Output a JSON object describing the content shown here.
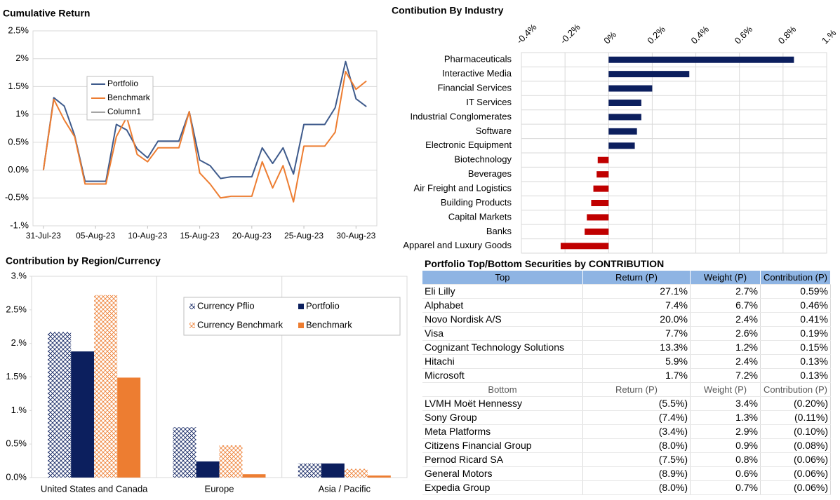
{
  "chart_data": [
    {
      "type": "line",
      "title": "Cumulative Return",
      "x": [
        "2023-07-31",
        "2023-08-01",
        "2023-08-02",
        "2023-08-03",
        "2023-08-04",
        "2023-08-05",
        "2023-08-06",
        "2023-08-07",
        "2023-08-08",
        "2023-08-09",
        "2023-08-10",
        "2023-08-11",
        "2023-08-12",
        "2023-08-13",
        "2023-08-14",
        "2023-08-15",
        "2023-08-16",
        "2023-08-17",
        "2023-08-18",
        "2023-08-19",
        "2023-08-20",
        "2023-08-21",
        "2023-08-22",
        "2023-08-23",
        "2023-08-24",
        "2023-08-25",
        "2023-08-26",
        "2023-08-27",
        "2023-08-28",
        "2023-08-29",
        "2023-08-30",
        "2023-08-31"
      ],
      "xlim": [
        "2023-07-30",
        "2023-09-01"
      ],
      "xticks": [
        {
          "value": "2023-07-31",
          "label": "31-Jul-23"
        },
        {
          "value": "2023-08-05",
          "label": "05-Aug-23"
        },
        {
          "value": "2023-08-10",
          "label": "10-Aug-23"
        },
        {
          "value": "2023-08-15",
          "label": "15-Aug-23"
        },
        {
          "value": "2023-08-20",
          "label": "20-Aug-23"
        },
        {
          "value": "2023-08-25",
          "label": "25-Aug-23"
        },
        {
          "value": "2023-08-30",
          "label": "30-Aug-23"
        }
      ],
      "ylim": [
        -1,
        2.5
      ],
      "yticks": [
        {
          "value": -1,
          "label": "-1.%"
        },
        {
          "value": -0.5,
          "label": "-0.5%"
        },
        {
          "value": 0,
          "label": "0.0%"
        },
        {
          "value": 0.5,
          "label": "0.5%"
        },
        {
          "value": 1,
          "label": "1%"
        },
        {
          "value": 1.5,
          "label": "1.5%"
        },
        {
          "value": 2,
          "label": "2%"
        },
        {
          "value": 2.5,
          "label": "2.5%"
        }
      ],
      "grid": true,
      "legend": "upper left",
      "series": [
        {
          "name": "Portfolio",
          "color": "#3f5b8c",
          "values": [
            0,
            1.3,
            1.15,
            0.62,
            -0.2,
            -0.2,
            -0.2,
            0.82,
            0.72,
            0.38,
            0.22,
            0.52,
            0.52,
            0.52,
            1.05,
            0.18,
            0.08,
            -0.15,
            -0.12,
            -0.12,
            -0.12,
            0.4,
            0.12,
            0.4,
            -0.07,
            0.82,
            0.82,
            0.82,
            1.12,
            1.95,
            1.28,
            1.14
          ]
        },
        {
          "name": "Benchmark",
          "color": "#ed7d31",
          "values": [
            0,
            1.27,
            0.9,
            0.6,
            -0.25,
            -0.25,
            -0.25,
            0.6,
            0.95,
            0.28,
            0.15,
            0.4,
            0.4,
            0.4,
            1.05,
            -0.05,
            -0.25,
            -0.5,
            -0.47,
            -0.47,
            -0.47,
            0.15,
            -0.32,
            0.08,
            -0.57,
            0.43,
            0.43,
            0.43,
            0.68,
            1.77,
            1.45,
            1.6
          ]
        },
        {
          "name": "Column1",
          "color": "#a5a5a5",
          "values": [
            null,
            null,
            null,
            null,
            null,
            null,
            null,
            null,
            null,
            null,
            null,
            null,
            null,
            null,
            null,
            null,
            null,
            null,
            null,
            null,
            null,
            null,
            null,
            null,
            null,
            null,
            null,
            null,
            null,
            null,
            null,
            null
          ]
        }
      ]
    },
    {
      "type": "barh",
      "title": "Contibution By Industry",
      "categories": [
        "Pharmaceuticals",
        "Interactive Media",
        "Financial Services",
        "IT Services",
        "Industrial Conglomerates",
        "Software",
        "Electronic Equipment",
        "Biotechnology",
        "Beverages",
        "Air Freight and Logistics",
        "Building Products",
        "Capital Markets",
        "Banks",
        "Apparel and Luxury Goods"
      ],
      "values": [
        0.85,
        0.37,
        0.2,
        0.15,
        0.15,
        0.13,
        0.12,
        -0.05,
        -0.055,
        -0.07,
        -0.08,
        -0.1,
        -0.11,
        -0.22
      ],
      "positive_color": "#0c1f5e",
      "negative_color": "#c00000",
      "xlim": [
        -0.4,
        1
      ],
      "xticks": [
        {
          "value": -0.4,
          "label": "-0.4%"
        },
        {
          "value": -0.2,
          "label": "-0.2%"
        },
        {
          "value": 0,
          "label": "0%"
        },
        {
          "value": 0.2,
          "label": "0.2%"
        },
        {
          "value": 0.4,
          "label": "0.4%"
        },
        {
          "value": 0.6,
          "label": "0.6%"
        },
        {
          "value": 0.8,
          "label": "0.8%"
        },
        {
          "value": 1,
          "label": "1.%"
        }
      ],
      "grid": true
    },
    {
      "type": "bar",
      "title": "Contribution by Region/Currency",
      "categories": [
        "United States and Canada",
        "Europe",
        "Asia / Pacific"
      ],
      "ylim": [
        0,
        3
      ],
      "yticks": [
        {
          "value": 0,
          "label": "0.0%"
        },
        {
          "value": 0.5,
          "label": "0.5%"
        },
        {
          "value": 1,
          "label": "1.%"
        },
        {
          "value": 1.5,
          "label": "1.5%"
        },
        {
          "value": 2,
          "label": "2.%"
        },
        {
          "value": 2.5,
          "label": "2.5%"
        },
        {
          "value": 3,
          "label": "3.%"
        }
      ],
      "grid": false,
      "legend": "upper right",
      "series": [
        {
          "name": "Currency Pflio",
          "color": "#0c1f5e",
          "pattern": "hatch",
          "values": [
            2.17,
            0.75,
            0.21
          ]
        },
        {
          "name": "Portfolio",
          "color": "#0c1f5e",
          "values": [
            1.88,
            0.24,
            0.21
          ]
        },
        {
          "name": "Currency Benchmark",
          "color": "#ed7d31",
          "pattern": "hatch",
          "values": [
            2.72,
            0.48,
            0.13
          ]
        },
        {
          "name": "Benchmark",
          "color": "#ed7d31",
          "values": [
            1.49,
            0.05,
            0.03
          ]
        }
      ]
    }
  ],
  "table": {
    "title": "Portfolio Top/Bottom Securities by CONTRIBUTION",
    "top": {
      "header": [
        "Top",
        "Return (P)",
        "Weight (P)",
        "Contribution (P)"
      ],
      "rows": [
        [
          "Eli Lilly",
          "27.1%",
          "2.7%",
          "0.59%"
        ],
        [
          "Alphabet",
          "7.4%",
          "6.7%",
          "0.46%"
        ],
        [
          "Novo Nordisk A/S",
          "20.0%",
          "2.4%",
          "0.41%"
        ],
        [
          "Visa",
          "7.7%",
          "2.6%",
          "0.19%"
        ],
        [
          "Cognizant Technology Solutions",
          "13.3%",
          "1.2%",
          "0.15%"
        ],
        [
          "Hitachi",
          "5.9%",
          "2.4%",
          "0.13%"
        ],
        [
          "Microsoft",
          "1.7%",
          "7.2%",
          "0.13%"
        ]
      ]
    },
    "bottom": {
      "header": [
        "Bottom",
        "Return (P)",
        "Weight (P)",
        "Contribution (P)"
      ],
      "rows": [
        [
          "LVMH Moët Hennessy",
          "(5.5%)",
          "3.4%",
          "(0.20%)"
        ],
        [
          "Sony Group",
          "(7.4%)",
          "1.3%",
          "(0.11%)"
        ],
        [
          "Meta Platforms",
          "(3.4%)",
          "2.9%",
          "(0.10%)"
        ],
        [
          "Citizens Financial Group",
          "(8.0%)",
          "0.9%",
          "(0.08%)"
        ],
        [
          "Pernod Ricard SA",
          "(7.5%)",
          "0.8%",
          "(0.06%)"
        ],
        [
          "General Motors",
          "(8.9%)",
          "0.6%",
          "(0.06%)"
        ],
        [
          "Expedia Group",
          "(8.0%)",
          "0.7%",
          "(0.06%)"
        ]
      ]
    }
  }
}
